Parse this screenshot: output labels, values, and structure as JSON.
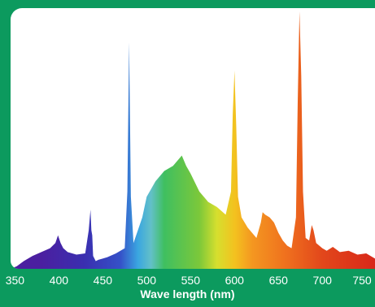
{
  "chart_data": {
    "type": "area",
    "title": "",
    "xlabel": "Wave length (nm)",
    "ylabel": "",
    "xlim": [
      345,
      760
    ],
    "ylim": [
      0,
      100
    ],
    "grid": false,
    "legend": "none",
    "x_ticks": [
      "350",
      "400",
      "450",
      "500",
      "550",
      "600",
      "650",
      "700",
      "750"
    ],
    "fill": "visible-spectrum gradient",
    "series": [
      {
        "x": [
          345,
          352,
          360,
          370,
          380,
          390,
          396,
          399,
          402,
          405,
          410,
          420,
          430,
          434,
          436,
          437,
          438,
          439,
          442,
          445,
          455,
          465,
          475,
          478,
          480,
          482,
          485,
          488,
          495,
          500,
          510,
          520,
          530,
          540,
          545,
          550,
          560,
          570,
          580,
          590,
          596,
          598,
          600,
          602,
          604,
          608,
          615,
          625,
          630,
          632,
          635,
          640,
          645,
          650,
          655,
          660,
          665,
          670,
          672,
          674,
          676,
          678,
          681,
          685,
          688,
          690,
          693,
          700,
          705,
          712,
          720,
          730,
          740,
          750,
          760
        ],
        "y": [
          0,
          1,
          3,
          5,
          6.5,
          8,
          10,
          13,
          10,
          8,
          6.5,
          5.5,
          6,
          15,
          23,
          15,
          13,
          5,
          3,
          3.5,
          4.5,
          6,
          8,
          30,
          88,
          28,
          10,
          13,
          20,
          28,
          34,
          38,
          40,
          44,
          40,
          37,
          30,
          26,
          24,
          21,
          30,
          60,
          77,
          55,
          28,
          20,
          16,
          12,
          18,
          22,
          21,
          20,
          18,
          14,
          11,
          9,
          8,
          20,
          65,
          100,
          75,
          30,
          12,
          11,
          17,
          15,
          10,
          8,
          7,
          8.5,
          6.5,
          7,
          5.5,
          6,
          4
        ]
      }
    ]
  }
}
